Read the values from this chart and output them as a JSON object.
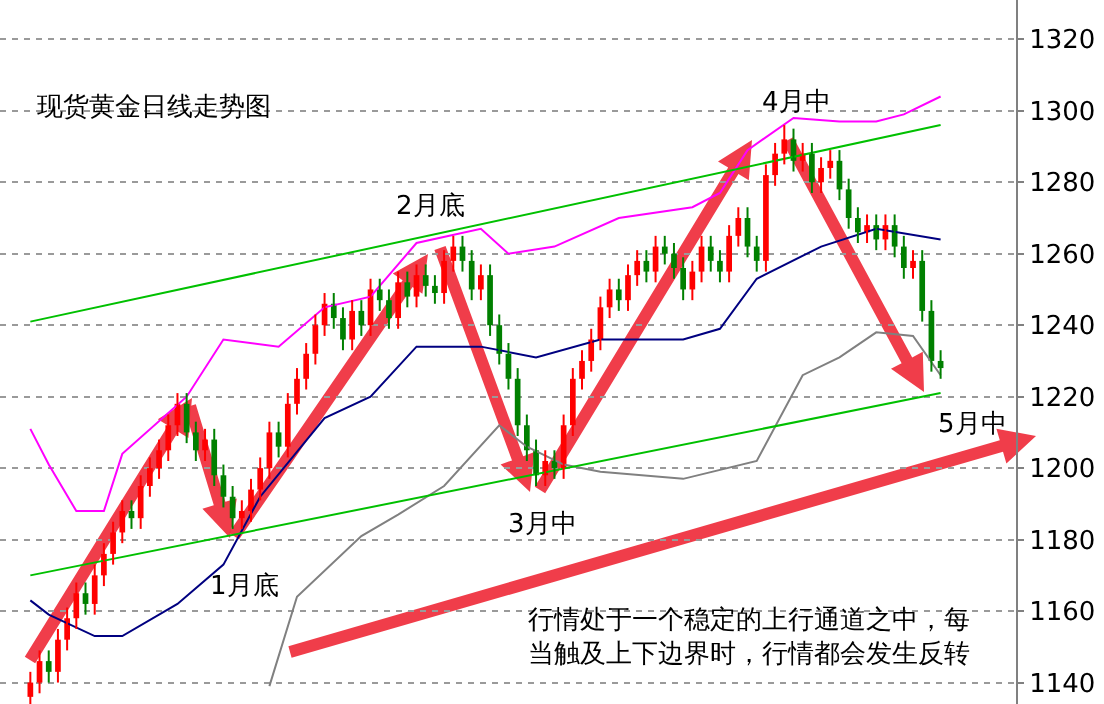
{
  "chart_data": {
    "type": "candlestick",
    "title": "现货黄金日线走势图",
    "categories": [
      null,
      null,
      null,
      null,
      null,
      null,
      null,
      null,
      null,
      null,
      null,
      null,
      null,
      null,
      null,
      null,
      null,
      null,
      null,
      null,
      null,
      null,
      null,
      null,
      null,
      null,
      null,
      null,
      null,
      null,
      null,
      null,
      null,
      null,
      null,
      null,
      null,
      null,
      null,
      null,
      null,
      null,
      null,
      null,
      null,
      null,
      null,
      null,
      null,
      null,
      null,
      null,
      null,
      null,
      null,
      null,
      null,
      null,
      null,
      null,
      null,
      null,
      null,
      null,
      null,
      null,
      null,
      null,
      null,
      null,
      null,
      null,
      null,
      null,
      null,
      null,
      null,
      null,
      null,
      null,
      null,
      null,
      null,
      null,
      null,
      null,
      null,
      null,
      null,
      null,
      null,
      null,
      null,
      null,
      null,
      null,
      null,
      null,
      null,
      null
    ],
    "ohlc": [
      [
        1136,
        1143,
        1133,
        1140
      ],
      [
        1140,
        1149,
        1137,
        1146
      ],
      [
        1146,
        1149,
        1140,
        1143
      ],
      [
        1143,
        1155,
        1140,
        1152
      ],
      [
        1152,
        1161,
        1149,
        1158
      ],
      [
        1158,
        1168,
        1155,
        1165
      ],
      [
        1165,
        1168,
        1159,
        1162
      ],
      [
        1162,
        1173,
        1159,
        1170
      ],
      [
        1170,
        1179,
        1167,
        1176
      ],
      [
        1176,
        1185,
        1173,
        1182
      ],
      [
        1182,
        1191,
        1179,
        1188
      ],
      [
        1188,
        1191,
        1183,
        1186
      ],
      [
        1186,
        1198,
        1183,
        1195
      ],
      [
        1195,
        1203,
        1192,
        1200
      ],
      [
        1200,
        1208,
        1197,
        1205
      ],
      [
        1205,
        1215,
        1202,
        1212
      ],
      [
        1212,
        1221,
        1209,
        1218
      ],
      [
        1218,
        1221,
        1207,
        1210
      ],
      [
        1210,
        1213,
        1202,
        1205
      ],
      [
        1205,
        1211,
        1202,
        1208
      ],
      [
        1208,
        1211,
        1195,
        1198
      ],
      [
        1198,
        1201,
        1189,
        1192
      ],
      [
        1192,
        1195,
        1183,
        1186
      ],
      [
        1186,
        1191,
        1183,
        1188
      ],
      [
        1188,
        1197,
        1185,
        1194
      ],
      [
        1194,
        1203,
        1191,
        1200
      ],
      [
        1200,
        1213,
        1197,
        1210
      ],
      [
        1210,
        1213,
        1203,
        1206
      ],
      [
        1206,
        1221,
        1203,
        1218
      ],
      [
        1218,
        1228,
        1215,
        1225
      ],
      [
        1225,
        1235,
        1222,
        1232
      ],
      [
        1232,
        1243,
        1229,
        1240
      ],
      [
        1240,
        1249,
        1237,
        1246
      ],
      [
        1246,
        1249,
        1239,
        1242
      ],
      [
        1242,
        1245,
        1233,
        1236
      ],
      [
        1236,
        1247,
        1233,
        1244
      ],
      [
        1244,
        1247,
        1237,
        1240
      ],
      [
        1240,
        1253,
        1237,
        1250
      ],
      [
        1250,
        1253,
        1244,
        1247
      ],
      [
        1247,
        1250,
        1239,
        1242
      ],
      [
        1242,
        1255,
        1239,
        1252
      ],
      [
        1252,
        1255,
        1245,
        1248
      ],
      [
        1248,
        1257,
        1245,
        1254
      ],
      [
        1254,
        1257,
        1248,
        1251
      ],
      [
        1251,
        1254,
        1246,
        1249
      ],
      [
        1249,
        1261,
        1246,
        1258
      ],
      [
        1258,
        1265,
        1255,
        1262
      ],
      [
        1262,
        1265,
        1255,
        1258
      ],
      [
        1258,
        1261,
        1247,
        1250
      ],
      [
        1250,
        1257,
        1247,
        1254
      ],
      [
        1254,
        1257,
        1237,
        1240
      ],
      [
        1240,
        1243,
        1229,
        1232
      ],
      [
        1232,
        1235,
        1222,
        1225
      ],
      [
        1225,
        1228,
        1209,
        1212
      ],
      [
        1212,
        1215,
        1202,
        1205
      ],
      [
        1205,
        1208,
        1195,
        1198
      ],
      [
        1198,
        1205,
        1195,
        1202
      ],
      [
        1202,
        1205,
        1197,
        1200
      ],
      [
        1200,
        1215,
        1197,
        1212
      ],
      [
        1212,
        1228,
        1209,
        1225
      ],
      [
        1225,
        1233,
        1222,
        1230
      ],
      [
        1230,
        1239,
        1227,
        1236
      ],
      [
        1236,
        1248,
        1233,
        1245
      ],
      [
        1245,
        1253,
        1242,
        1250
      ],
      [
        1250,
        1253,
        1244,
        1247
      ],
      [
        1247,
        1257,
        1244,
        1254
      ],
      [
        1254,
        1261,
        1251,
        1258
      ],
      [
        1258,
        1261,
        1252,
        1255
      ],
      [
        1255,
        1265,
        1252,
        1262
      ],
      [
        1262,
        1265,
        1257,
        1260
      ],
      [
        1260,
        1263,
        1253,
        1256
      ],
      [
        1256,
        1259,
        1247,
        1250
      ],
      [
        1250,
        1258,
        1247,
        1255
      ],
      [
        1255,
        1265,
        1252,
        1262
      ],
      [
        1262,
        1265,
        1255,
        1258
      ],
      [
        1258,
        1261,
        1252,
        1255
      ],
      [
        1255,
        1268,
        1252,
        1265
      ],
      [
        1265,
        1273,
        1262,
        1270
      ],
      [
        1270,
        1273,
        1259,
        1262
      ],
      [
        1262,
        1265,
        1255,
        1258
      ],
      [
        1258,
        1285,
        1255,
        1282
      ],
      [
        1282,
        1291,
        1279,
        1288
      ],
      [
        1288,
        1296,
        1285,
        1292
      ],
      [
        1292,
        1295,
        1283,
        1286
      ],
      [
        1286,
        1291,
        1283,
        1288
      ],
      [
        1288,
        1291,
        1277,
        1280
      ],
      [
        1280,
        1287,
        1277,
        1284
      ],
      [
        1284,
        1289,
        1281,
        1286
      ],
      [
        1286,
        1289,
        1275,
        1278
      ],
      [
        1278,
        1281,
        1267,
        1270
      ],
      [
        1270,
        1273,
        1263,
        1266
      ],
      [
        1266,
        1271,
        1263,
        1268
      ],
      [
        1268,
        1271,
        1261,
        1264
      ],
      [
        1264,
        1271,
        1261,
        1268
      ],
      [
        1268,
        1271,
        1259,
        1262
      ],
      [
        1262,
        1265,
        1253,
        1256
      ],
      [
        1256,
        1261,
        1253,
        1258
      ],
      [
        1258,
        1261,
        1241,
        1244
      ],
      [
        1244,
        1247,
        1227,
        1230
      ],
      [
        1230,
        1233,
        1225,
        1228
      ]
    ],
    "colors": [
      "#ff0000",
      "#ff0000",
      "#008000",
      "#ff0000",
      "#ff0000",
      "#ff0000",
      "#008000",
      "#ff0000",
      "#ff0000",
      "#ff0000",
      "#ff0000",
      "#008000",
      "#ff0000",
      "#ff0000",
      "#ff0000",
      "#ff0000",
      "#ff0000",
      "#008000",
      "#008000",
      "#ff0000",
      "#008000",
      "#008000",
      "#008000",
      "#ff0000",
      "#ff0000",
      "#ff0000",
      "#ff0000",
      "#008000",
      "#ff0000",
      "#ff0000",
      "#ff0000",
      "#ff0000",
      "#ff0000",
      "#008000",
      "#008000",
      "#ff0000",
      "#008000",
      "#ff0000",
      "#008000",
      "#008000",
      "#ff0000",
      "#008000",
      "#ff0000",
      "#008000",
      "#008000",
      "#ff0000",
      "#ff0000",
      "#008000",
      "#008000",
      "#ff0000",
      "#008000",
      "#008000",
      "#008000",
      "#008000",
      "#008000",
      "#008000",
      "#ff0000",
      "#008000",
      "#ff0000",
      "#ff0000",
      "#ff0000",
      "#ff0000",
      "#ff0000",
      "#ff0000",
      "#008000",
      "#ff0000",
      "#ff0000",
      "#008000",
      "#ff0000",
      "#008000",
      "#008000",
      "#008000",
      "#ff0000",
      "#ff0000",
      "#008000",
      "#008000",
      "#ff0000",
      "#ff0000",
      "#008000",
      "#008000",
      "#ff0000",
      "#ff0000",
      "#ff0000",
      "#008000",
      "#ff0000",
      "#008000",
      "#ff0000",
      "#ff0000",
      "#008000",
      "#008000",
      "#008000",
      "#ff0000",
      "#008000",
      "#ff0000",
      "#008000",
      "#008000",
      "#ff0000",
      "#008000",
      "#008000",
      "#008000"
    ],
    "series": [
      {
        "type": "line",
        "color": "#ff00ff",
        "values": [
          1211,
          null,
          1201,
          null,
          null,
          1188,
          null,
          null,
          1188,
          null,
          1204,
          null,
          null,
          null,
          null,
          null,
          null,
          1220,
          null,
          null,
          null,
          1236,
          null,
          null,
          null,
          null,
          null,
          1234,
          null,
          null,
          null,
          null,
          1245,
          null,
          null,
          null,
          null,
          1248,
          null,
          null,
          null,
          null,
          1263,
          null,
          null,
          null,
          null,
          null,
          null,
          1267,
          null,
          null,
          1260,
          null,
          null,
          null,
          null,
          1262,
          null,
          null,
          null,
          null,
          null,
          null,
          1270,
          null,
          null,
          null,
          null,
          null,
          null,
          null,
          1273,
          null,
          null,
          1277,
          null,
          null,
          1289,
          null,
          null,
          null,
          null,
          1298,
          null,
          null,
          null,
          null,
          1297,
          null,
          null,
          null,
          1297,
          null,
          null,
          1299,
          null,
          null,
          null,
          1304
        ]
      },
      {
        "type": "line",
        "color": "#000080",
        "values": [
          1163,
          null,
          1159,
          null,
          null,
          null,
          null,
          1153,
          null,
          null,
          1153,
          null,
          null,
          null,
          null,
          null,
          1162,
          null,
          null,
          null,
          null,
          1173,
          null,
          null,
          null,
          1192,
          null,
          null,
          null,
          null,
          null,
          null,
          1214,
          null,
          null,
          null,
          null,
          1220,
          null,
          null,
          null,
          null,
          1234,
          null,
          null,
          null,
          null,
          null,
          null,
          1234,
          null,
          null,
          null,
          null,
          null,
          1231,
          null,
          null,
          null,
          null,
          null,
          null,
          1236,
          null,
          null,
          null,
          null,
          null,
          null,
          null,
          null,
          1236,
          null,
          null,
          null,
          1239,
          null,
          null,
          null,
          1253,
          null,
          null,
          null,
          null,
          null,
          null,
          1262,
          null,
          null,
          null,
          null,
          null,
          1267,
          null,
          null,
          null,
          null,
          null,
          null,
          1264
        ]
      },
      {
        "type": "line",
        "color": "#808080",
        "values": [
          null,
          null,
          null,
          null,
          null,
          null,
          null,
          null,
          null,
          null,
          null,
          null,
          null,
          null,
          null,
          null,
          null,
          null,
          null,
          null,
          null,
          null,
          null,
          null,
          null,
          null,
          1139,
          null,
          null,
          1164,
          null,
          null,
          null,
          null,
          null,
          null,
          1181,
          null,
          null,
          null,
          1187,
          null,
          null,
          null,
          null,
          1195,
          null,
          null,
          null,
          null,
          null,
          1212,
          null,
          null,
          1206,
          null,
          null,
          null,
          1201,
          null,
          null,
          null,
          1199,
          null,
          null,
          null,
          null,
          null,
          null,
          null,
          null,
          1197,
          null,
          null,
          null,
          null,
          null,
          null,
          null,
          1202,
          null,
          null,
          null,
          null,
          1226,
          null,
          null,
          null,
          1231,
          null,
          null,
          null,
          1238,
          null,
          null,
          null,
          1237,
          null,
          null,
          1226
        ]
      },
      {
        "type": "line",
        "color": "#00c000",
        "values": [
          1241,
          null,
          null,
          null,
          null,
          null,
          null,
          null,
          null,
          null,
          null,
          null,
          null,
          null,
          null,
          null,
          null,
          null,
          null,
          null,
          null,
          null,
          null,
          null,
          null,
          null,
          null,
          null,
          null,
          null,
          null,
          null,
          null,
          null,
          null,
          null,
          null,
          null,
          null,
          null,
          null,
          null,
          null,
          null,
          null,
          null,
          null,
          null,
          null,
          null,
          null,
          null,
          null,
          null,
          null,
          null,
          null,
          null,
          null,
          null,
          null,
          null,
          null,
          null,
          null,
          null,
          null,
          null,
          null,
          null,
          null,
          null,
          null,
          null,
          null,
          null,
          null,
          null,
          null,
          null,
          null,
          null,
          null,
          null,
          null,
          null,
          null,
          null,
          null,
          null,
          null,
          null,
          null,
          null,
          null,
          null,
          null,
          null,
          null,
          1296
        ]
      },
      {
        "type": "line",
        "color": "#00c000",
        "values": [
          1170,
          null,
          null,
          null,
          null,
          null,
          null,
          null,
          null,
          null,
          null,
          null,
          null,
          null,
          null,
          null,
          null,
          null,
          null,
          null,
          null,
          null,
          null,
          null,
          null,
          null,
          null,
          null,
          null,
          null,
          null,
          null,
          null,
          null,
          null,
          null,
          null,
          null,
          null,
          null,
          null,
          null,
          null,
          null,
          null,
          null,
          null,
          null,
          null,
          null,
          null,
          null,
          null,
          null,
          null,
          null,
          null,
          null,
          null,
          null,
          null,
          null,
          null,
          null,
          null,
          null,
          null,
          null,
          null,
          null,
          null,
          null,
          null,
          null,
          null,
          null,
          null,
          null,
          null,
          null,
          null,
          null,
          null,
          null,
          null,
          null,
          null,
          null,
          null,
          null,
          null,
          null,
          null,
          null,
          null,
          null,
          null,
          null,
          null,
          1221
        ]
      }
    ],
    "ylim": [
      1134,
      1331
    ],
    "yticks": [
      1140,
      1160,
      1180,
      1200,
      1220,
      1240,
      1260,
      1280,
      1300,
      1320
    ],
    "grid": "y",
    "tick_labels": "y",
    "annotations": [
      "2月底",
      "4月中",
      "1月底",
      "3月中",
      "5月中",
      "行情处于一个稳定的上行通道之中，每当触及上下边界时，行情都会发生反转"
    ]
  }
}
